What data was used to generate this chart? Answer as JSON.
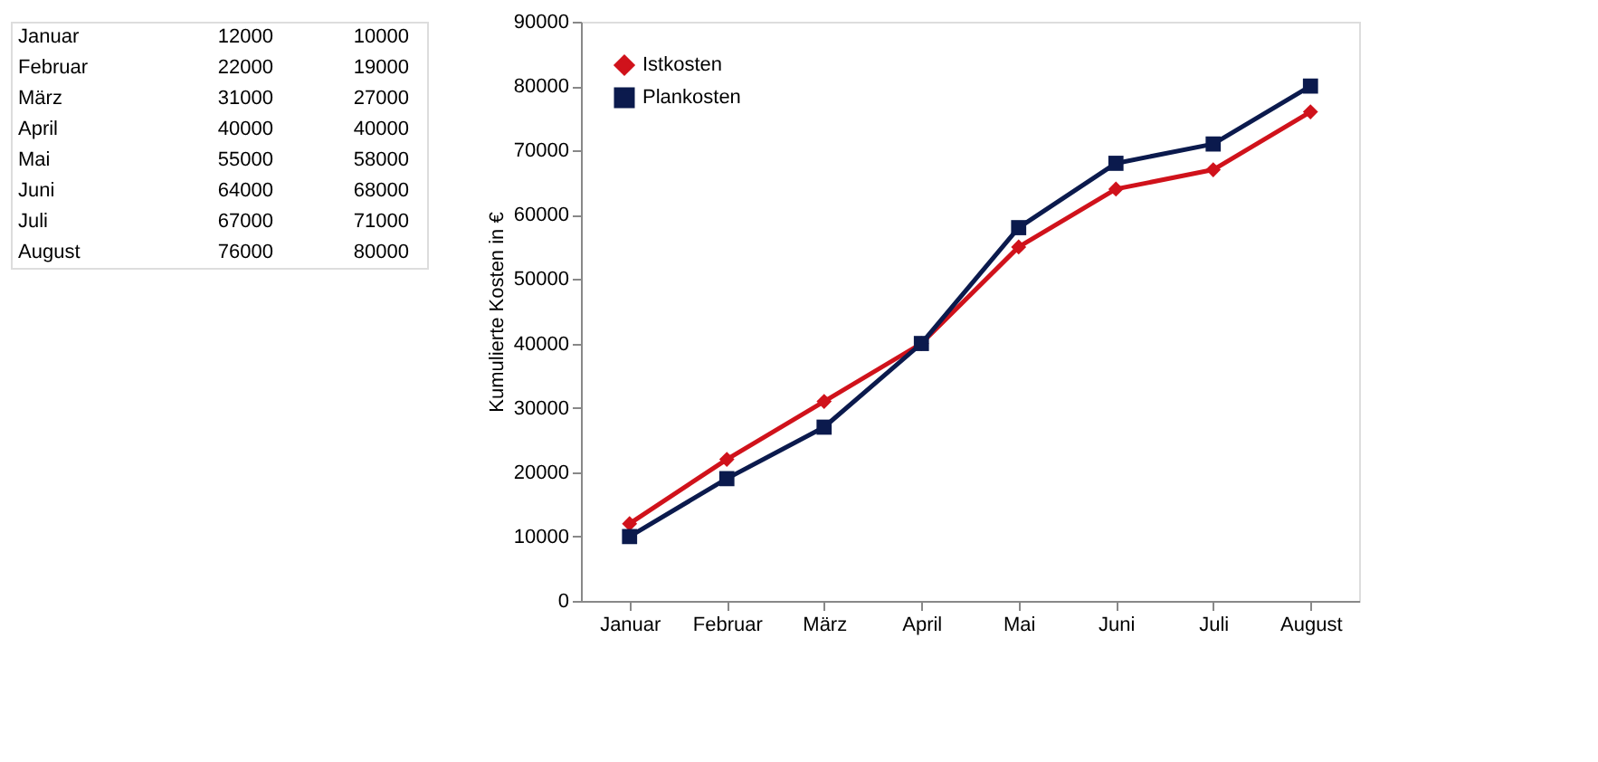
{
  "chart_data": [
    {
      "type": "other",
      "annotations": [
        "Januar",
        "12000",
        "10000",
        "Februar",
        "22000",
        "19000",
        "März",
        "31000",
        "27000",
        "April",
        "40000",
        "40000",
        "Mai",
        "55000",
        "58000",
        "Juni",
        "64000",
        "68000",
        "Juli",
        "67000",
        "71000",
        "August",
        "76000",
        "80000"
      ]
    },
    {
      "type": "line",
      "ylabel": "Kumulierte Kosten in €",
      "categories": [
        "Januar",
        "Februar",
        "März",
        "April",
        "Mai",
        "Juni",
        "Juli",
        "August"
      ],
      "series": [
        {
          "name": "Istkosten",
          "color": "#d0121b",
          "marker": "diamond",
          "values": [
            12000,
            22000,
            31000,
            40000,
            55000,
            64000,
            67000,
            76000
          ]
        },
        {
          "name": "Plankosten",
          "color": "#0b1a4d",
          "marker": "square",
          "values": [
            10000,
            19000,
            27000,
            40000,
            58000,
            68000,
            71000,
            80000
          ]
        }
      ],
      "ylim": [
        0,
        90000
      ],
      "yticks": [
        0,
        10000,
        20000,
        30000,
        40000,
        50000,
        60000,
        70000,
        80000,
        90000
      ],
      "grid": false,
      "legend": "top left",
      "line_style": "solid"
    }
  ]
}
